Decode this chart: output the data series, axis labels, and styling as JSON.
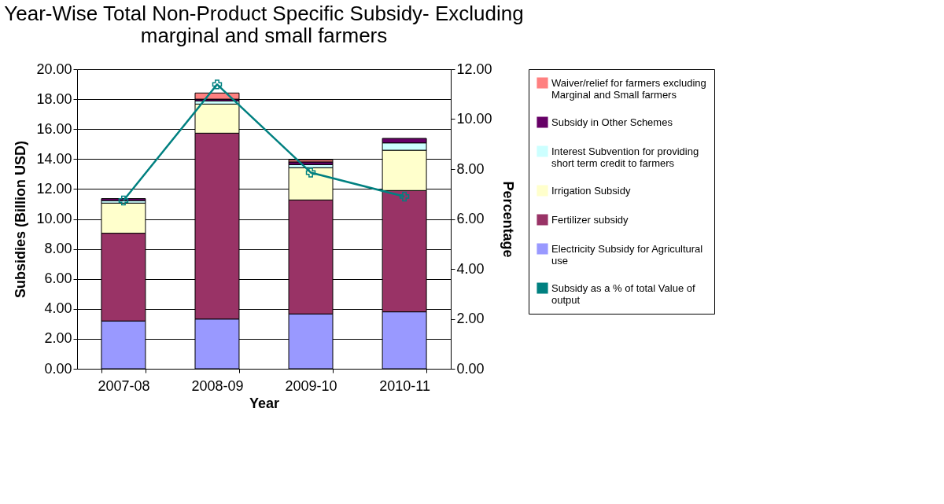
{
  "chart_data": {
    "type": "bar",
    "title": [
      "Year-Wise Total Non-Product Specific Subsidy- Excluding",
      "marginal and small farmers"
    ],
    "xlabel": "Year",
    "ylabel": "Subsidies (Billion USD)",
    "y2label": "Percentage",
    "categories": [
      "2007-08",
      "2008-09",
      "2009-10",
      "2010-11"
    ],
    "stacked": true,
    "series": [
      {
        "name": "Electricity Subsidy for Agricultural use",
        "color": "#9999ff",
        "values": [
          3.19,
          3.32,
          3.66,
          3.8
        ]
      },
      {
        "name": "Fertilizer subsidy",
        "color": "#993366",
        "values": [
          5.86,
          12.41,
          7.61,
          8.1
        ]
      },
      {
        "name": "Irrigation Subsidy",
        "color": "#ffffcc",
        "values": [
          2.01,
          1.94,
          2.15,
          2.69
        ]
      },
      {
        "name": "Interest Subvention for providing short term credit to farmers",
        "color": "#ccffff",
        "values": [
          0.17,
          0.21,
          0.21,
          0.49
        ]
      },
      {
        "name": "Subsidy in Other Schemes",
        "color": "#660066",
        "values": [
          0.13,
          0.12,
          0.18,
          0.3
        ]
      },
      {
        "name": "Waiver/relief for farmers excluding Marginal and Small farmers",
        "color": "#ff8080",
        "values": [
          0,
          0.41,
          0.14,
          0
        ]
      },
      {
        "name": "Subsidy as a % of total Value of output",
        "color": "#008080",
        "type": "line",
        "axis": "y2",
        "marker": "cross",
        "values": [
          6.74,
          11.39,
          7.86,
          6.9
        ]
      }
    ],
    "ylim": [
      0,
      20
    ],
    "yticks": [
      {
        "value": 0,
        "label": "0.00"
      },
      {
        "value": 2,
        "label": "2.00"
      },
      {
        "value": 4,
        "label": "4.00"
      },
      {
        "value": 6,
        "label": "6.00"
      },
      {
        "value": 8,
        "label": "8.00"
      },
      {
        "value": 10,
        "label": "10.00"
      },
      {
        "value": 12,
        "label": "12.00"
      },
      {
        "value": 14,
        "label": "14.00"
      },
      {
        "value": 16,
        "label": "16.00"
      },
      {
        "value": 18,
        "label": "18.00"
      },
      {
        "value": 20,
        "label": "20.00"
      }
    ],
    "y2lim": [
      0,
      12
    ],
    "y2ticks": [
      {
        "value": 0,
        "label": "0.00"
      },
      {
        "value": 2,
        "label": "2.00"
      },
      {
        "value": 4,
        "label": "4.00"
      },
      {
        "value": 6,
        "label": "6.00"
      },
      {
        "value": 8,
        "label": "8.00"
      },
      {
        "value": 10,
        "label": "10.00"
      },
      {
        "value": 12,
        "label": "12.00"
      }
    ],
    "grid": "y",
    "legend": "right"
  }
}
